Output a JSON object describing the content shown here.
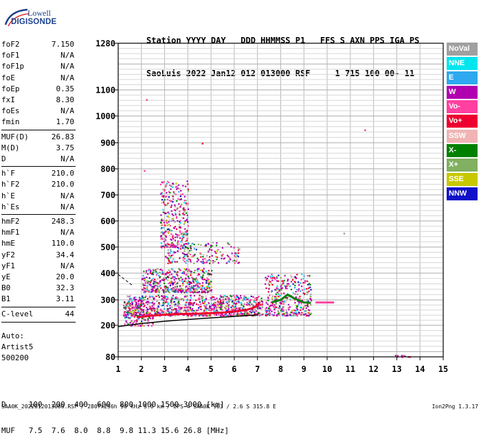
{
  "logo": {
    "line1": "Lowell",
    "line2": "DIGISONDE"
  },
  "header": {
    "labels": "Station YYYY DAY   DDD HHMMSS P1   FFS S AXN PPS IGA PS",
    "values": "SaoLuis 2022 Jan12 012 013000 RSF     1 715 100 00- 11"
  },
  "params": {
    "group1": [
      {
        "key": "foF2",
        "value": "7.150"
      },
      {
        "key": "foF1",
        "value": "N/A"
      },
      {
        "key": "foF1p",
        "value": "N/A"
      },
      {
        "key": "foE",
        "value": "N/A"
      },
      {
        "key": "foEp",
        "value": "0.35"
      },
      {
        "key": "fxI",
        "value": "8.30"
      },
      {
        "key": "foEs",
        "value": "N/A"
      },
      {
        "key": "fmin",
        "value": "1.70"
      }
    ],
    "group2": [
      {
        "key": "MUF(D)",
        "value": "26.83"
      },
      {
        "key": "M(D)",
        "value": "3.75"
      },
      {
        "key": "D",
        "value": "N/A"
      }
    ],
    "group3": [
      {
        "key": "h`F",
        "value": "210.0"
      },
      {
        "key": "h`F2",
        "value": "210.0"
      },
      {
        "key": "h`E",
        "value": "N/A"
      },
      {
        "key": "h`Es",
        "value": "N/A"
      }
    ],
    "group4": [
      {
        "key": "hmF2",
        "value": "248.3"
      },
      {
        "key": "hmF1",
        "value": "N/A"
      },
      {
        "key": "hmE",
        "value": "110.0"
      },
      {
        "key": "yF2",
        "value": "34.4"
      },
      {
        "key": "yF1",
        "value": "N/A"
      },
      {
        "key": "yE",
        "value": "20.0"
      },
      {
        "key": "B0",
        "value": "32.3"
      },
      {
        "key": "B1",
        "value": "3.11"
      }
    ],
    "group5": [
      {
        "key": "C-level",
        "value": "44"
      }
    ]
  },
  "auto": {
    "line1": "Auto:",
    "line2": "Artist5",
    "line3": "500200"
  },
  "legend": [
    {
      "label": "NoVal",
      "color": "#a0a0a0"
    },
    {
      "label": "NNE",
      "color": "#00e5ee"
    },
    {
      "label": "E",
      "color": "#2ea8ee"
    },
    {
      "label": "W",
      "color": "#b000b0"
    },
    {
      "label": "Vo-",
      "color": "#ff40a0"
    },
    {
      "label": "Vo+",
      "color": "#ee0030"
    },
    {
      "label": "SSW",
      "color": "#f0b4b4"
    },
    {
      "label": "X-",
      "color": "#008000"
    },
    {
      "label": "X+",
      "color": "#80b060"
    },
    {
      "label": "SSE",
      "color": "#c8c800"
    },
    {
      "label": "NNW",
      "color": "#1010c8"
    }
  ],
  "bottom": {
    "line1": "D     100  200  400  600  800 1000 1500 3000 [km]",
    "line2": "MUF   7.5  7.6  8.0  8.8  9.8 11.3 15.6 26.8 [MHz]"
  },
  "footer": "SAA0K_2022012013000.RSF / 280fx256h 50 kHz 5.0 km / DPS-4 SAA0K 903 / 2.6 S 315.8 E",
  "version": "Ion2Png 1.3.17",
  "chart_data": {
    "type": "scatter",
    "title": "",
    "xlabel": "",
    "ylabel": "",
    "xlim": [
      1,
      15
    ],
    "ylim": [
      80,
      1280
    ],
    "x_ticks": [
      1,
      2,
      3,
      4,
      5,
      6,
      7,
      8,
      9,
      10,
      11,
      12,
      13,
      14,
      15
    ],
    "y_ticks": [
      80,
      200,
      300,
      400,
      500,
      600,
      700,
      800,
      900,
      1000,
      1100,
      1280
    ],
    "y_tick_labels": [
      "80",
      "200",
      "300",
      "400",
      "500",
      "600",
      "700",
      "800",
      "900",
      "1000",
      "1100",
      "1280"
    ],
    "y_scale": "nonlinear (ionogram virtual height)",
    "grid": true,
    "legend": "right",
    "traces": [
      {
        "name": "O-trace (Vo+)",
        "color": "#ee0030",
        "points": [
          [
            1.8,
            232
          ],
          [
            2.5,
            238
          ],
          [
            3.0,
            242
          ],
          [
            3.5,
            244
          ],
          [
            4.0,
            245
          ],
          [
            4.5,
            246
          ],
          [
            5.0,
            248
          ],
          [
            5.5,
            250
          ],
          [
            6.0,
            254
          ],
          [
            6.5,
            260
          ],
          [
            6.8,
            268
          ],
          [
            7.0,
            278
          ],
          [
            7.1,
            290
          ]
        ]
      },
      {
        "name": "X-trace",
        "color": "#008000",
        "points": [
          [
            7.6,
            290
          ],
          [
            8.0,
            300
          ],
          [
            8.3,
            320
          ],
          [
            8.6,
            305
          ],
          [
            9.0,
            290
          ],
          [
            9.3,
            288
          ]
        ]
      },
      {
        "name": "Profile",
        "color": "#000000",
        "points": [
          [
            1.0,
            195
          ],
          [
            2.0,
            207
          ],
          [
            3.0,
            216
          ],
          [
            4.0,
            223
          ],
          [
            5.0,
            229
          ],
          [
            6.0,
            235
          ],
          [
            7.0,
            241
          ]
        ]
      },
      {
        "name": "E-layer",
        "color": "#ff40a0",
        "points": [
          [
            9.5,
            290
          ],
          [
            10.0,
            290
          ],
          [
            10.3,
            290
          ]
        ]
      }
    ],
    "clusters": [
      {
        "x": [
          1.2,
          7.2
        ],
        "y": [
          240,
          320
        ],
        "density": 900
      },
      {
        "x": [
          2.0,
          5.0
        ],
        "y": [
          330,
          420
        ],
        "density": 500
      },
      {
        "x": [
          2.8,
          4.0
        ],
        "y": [
          500,
          760
        ],
        "density": 320
      },
      {
        "x": [
          3.0,
          6.2
        ],
        "y": [
          440,
          520
        ],
        "density": 200
      },
      {
        "x": [
          7.3,
          9.3
        ],
        "y": [
          240,
          400
        ],
        "density": 380
      },
      {
        "x": [
          1.2,
          2.5
        ],
        "y": [
          200,
          300
        ],
        "density": 150
      },
      {
        "x": [
          12.9,
          13.7
        ],
        "y": [
          80,
          88
        ],
        "density": 10
      }
    ],
    "isolated": [
      [
        2.2,
        1065
      ],
      [
        11.6,
        950
      ],
      [
        10.7,
        555
      ],
      [
        4.6,
        900
      ],
      [
        2.1,
        795
      ]
    ]
  }
}
